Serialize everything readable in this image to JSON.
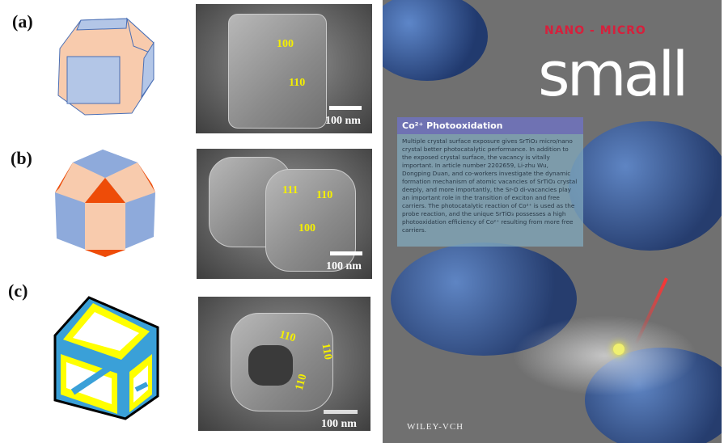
{
  "panels": [
    {
      "label": "(a)",
      "faces": [
        "100",
        "110"
      ],
      "scale": "100 nm"
    },
    {
      "label": "(b)",
      "faces": [
        "111",
        "110",
        "100"
      ],
      "scale": "100 nm"
    },
    {
      "label": "(c)",
      "faces": [
        "110",
        "110",
        "110"
      ],
      "scale": "100 nm"
    }
  ],
  "colors": {
    "face100": "#b3c6e7",
    "face110": "#f8cbad",
    "face111": "#ee4c08",
    "frame": "#ffff00",
    "hollow": "#3aa0d8"
  },
  "cover": {
    "journal_prefix": "NANO - MICRO",
    "journal": "small",
    "box_title": "Co²⁺ Photooxidation",
    "box_text": "Multiple crystal surface exposure gives SrTiO₃ micro/nano crystal better photocatalytic performance. In addition to the exposed crystal surface, the vacancy is vitally important. In article number 2202659, Li-zhu Wu, Dongping Duan, and co-workers investigate the dynamic formation mechanism of atomic vacancies of SrTiO₃ crystal deeply, and more importantly, the Sr-O di-vacancies play an important role in the transition of exciton and free carriers. The photocatalytic reaction of Co²⁺ is used as the probe reaction, and the unique SrTiO₃ possesses a high photooxidation efficiency of Co²⁺ resulting from more free carriers.",
    "publisher": "WILEY-VCH"
  }
}
